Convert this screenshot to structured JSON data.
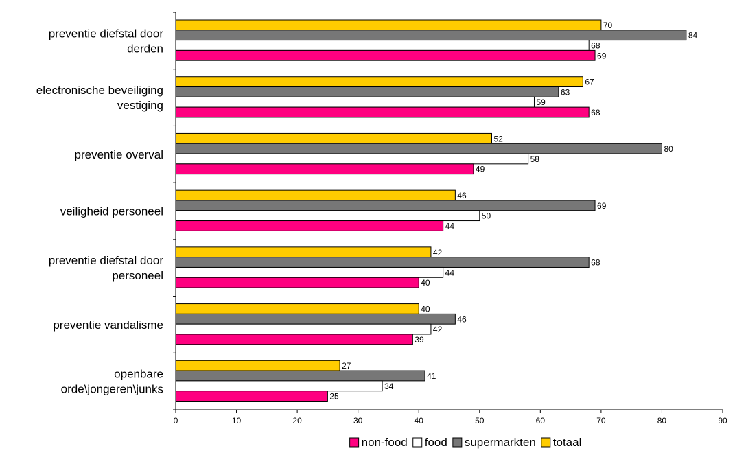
{
  "chart_data": {
    "type": "bar",
    "orientation": "horizontal",
    "categories": [
      [
        "preventie diefstal door",
        "derden"
      ],
      [
        "electronische beveiliging",
        "vestiging"
      ],
      [
        "preventie overval"
      ],
      [
        "veiligheid personeel"
      ],
      [
        "preventie diefstal door",
        "personeel"
      ],
      [
        "preventie vandalisme"
      ],
      [
        "openbare",
        "orde\\jongeren\\junks"
      ]
    ],
    "series": [
      {
        "name": "totaal",
        "color": "#FFCC00",
        "values": [
          70,
          67,
          52,
          46,
          42,
          40,
          27
        ]
      },
      {
        "name": "supermarkten",
        "color": "#777777",
        "values": [
          84,
          63,
          80,
          69,
          68,
          46,
          41
        ]
      },
      {
        "name": "food",
        "color": "#FFFFFF",
        "values": [
          68,
          59,
          58,
          50,
          44,
          42,
          34
        ]
      },
      {
        "name": "non-food",
        "color": "#FF0080",
        "values": [
          69,
          68,
          49,
          44,
          40,
          39,
          25
        ]
      }
    ],
    "legend_order": [
      "non-food",
      "food",
      "supermarkten",
      "totaal"
    ],
    "xlim": [
      0,
      90
    ],
    "xticks": [
      0,
      10,
      20,
      30,
      40,
      50,
      60,
      70,
      80,
      90
    ],
    "legend_position": "bottom",
    "grid": false
  }
}
